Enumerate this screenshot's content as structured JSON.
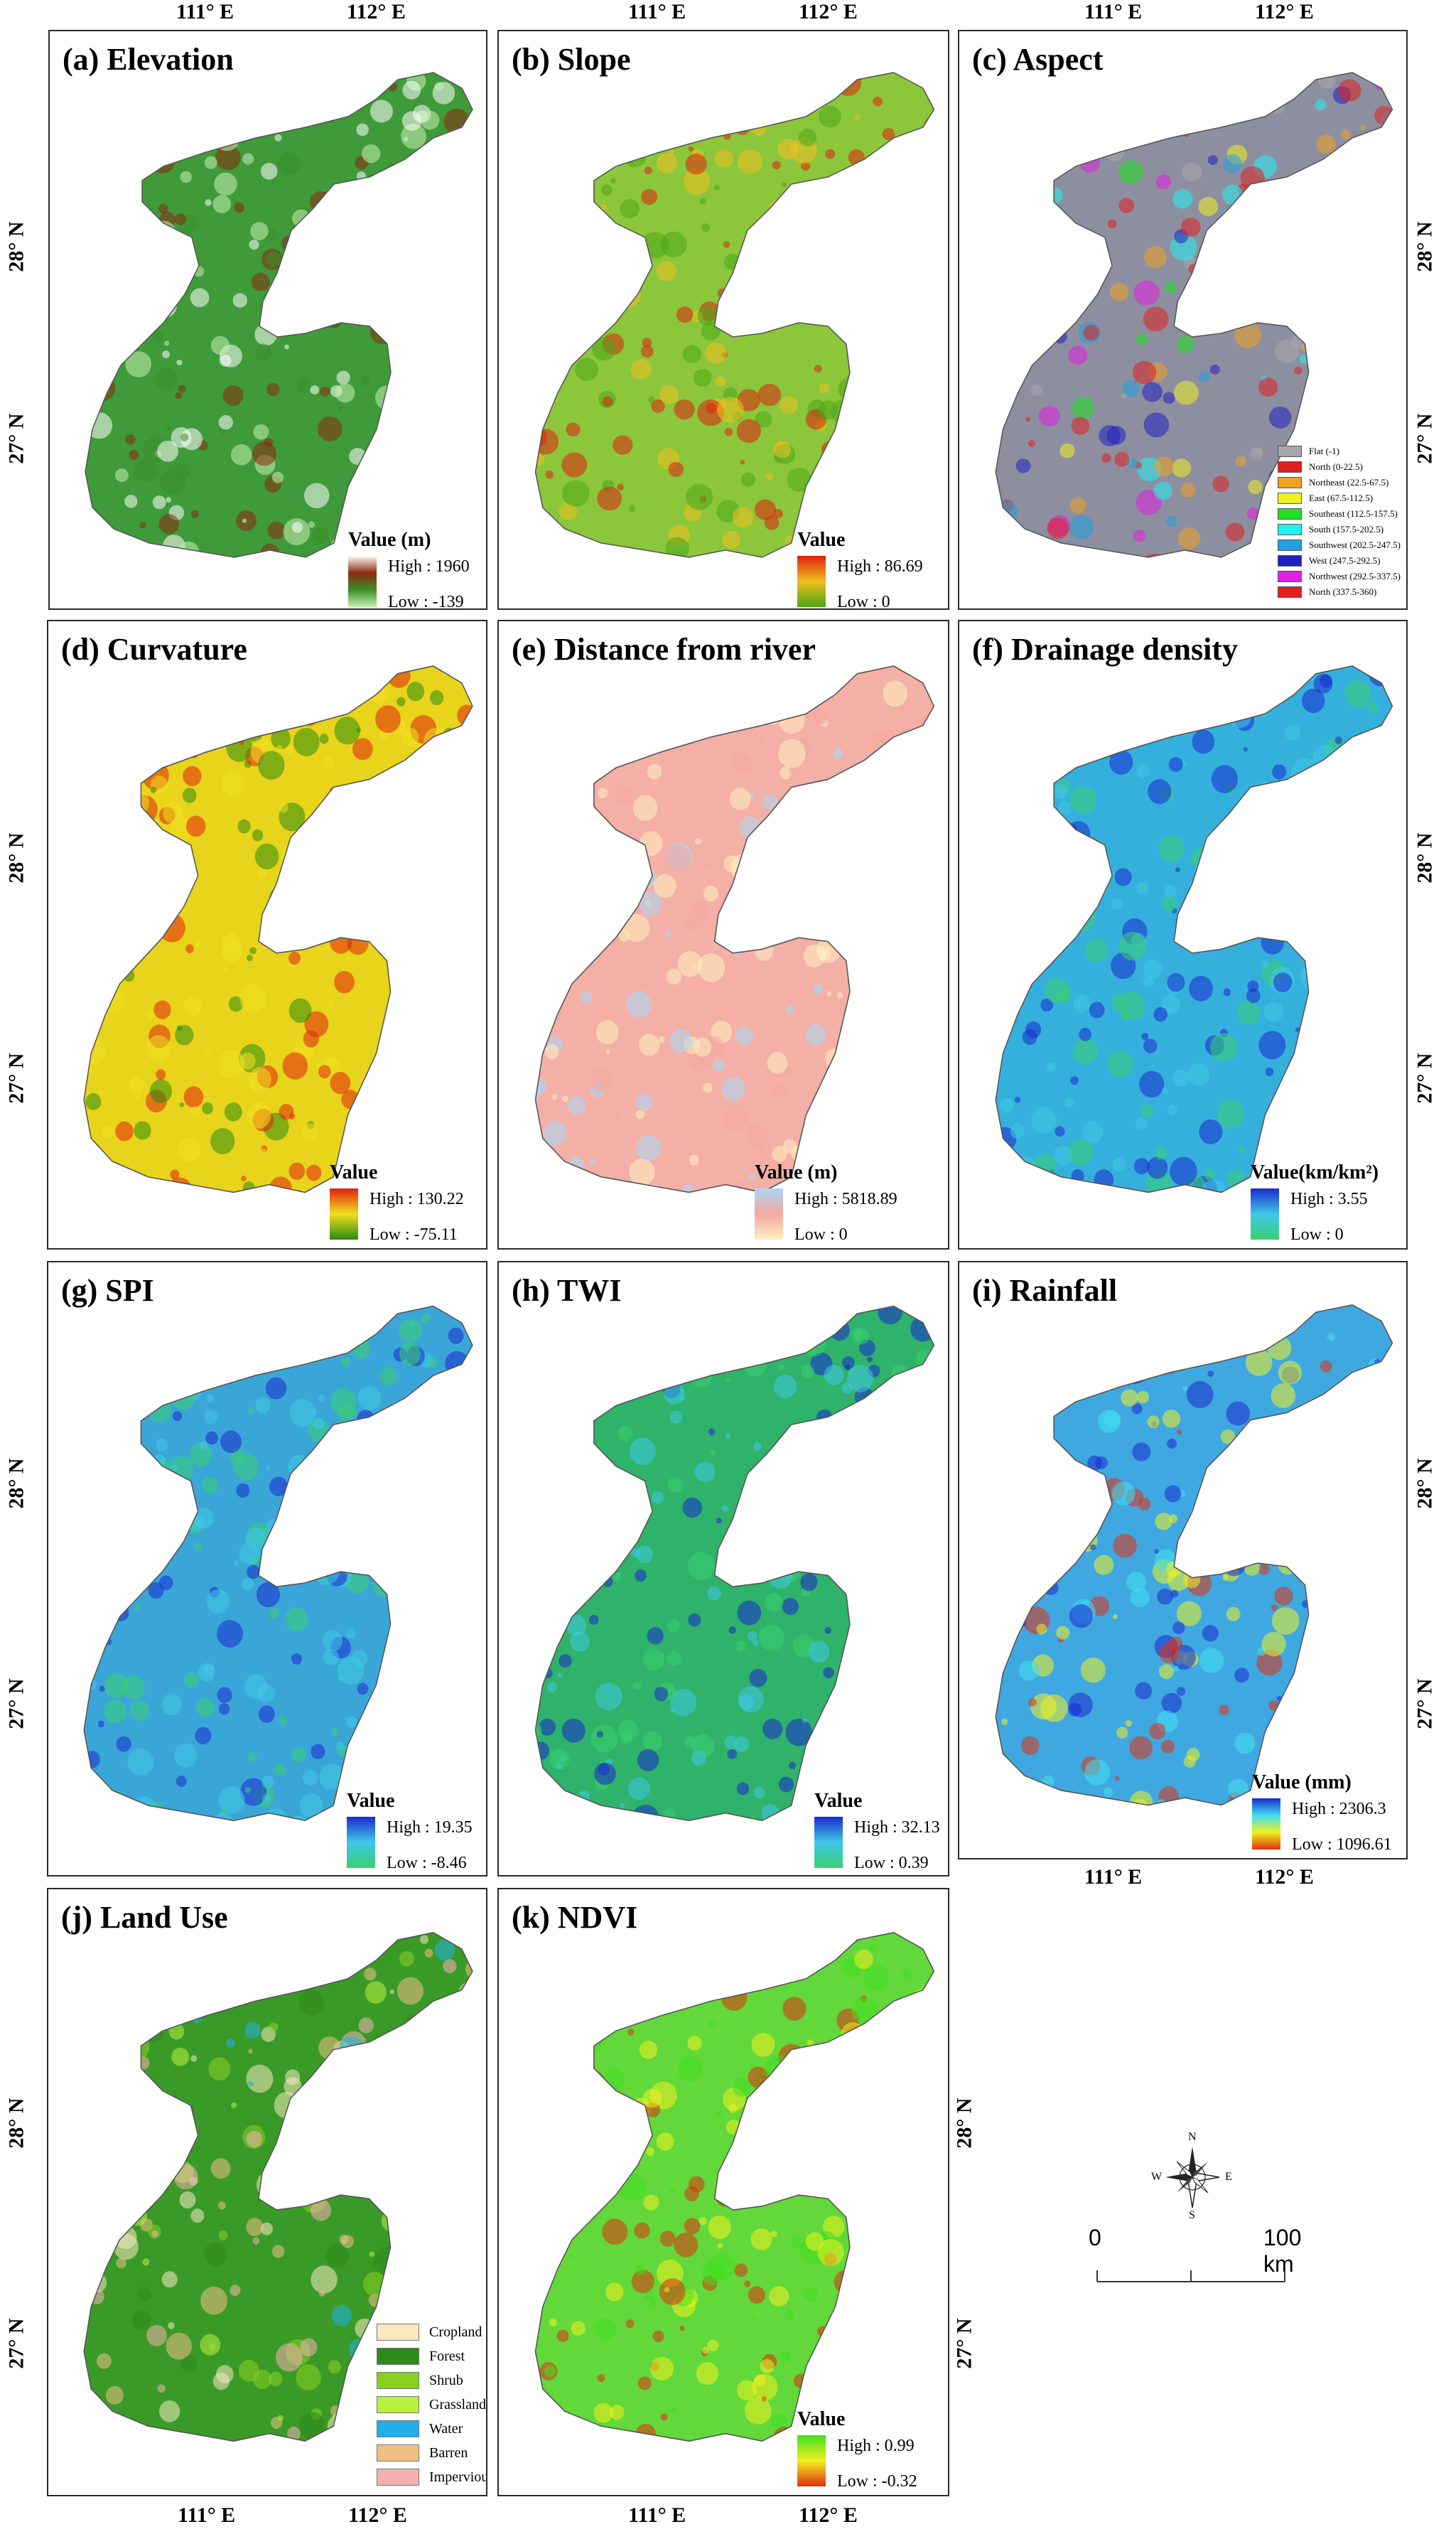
{
  "coords": {
    "lon1": "111° E",
    "lon2": "112° E",
    "lat1": "28° N",
    "lat2": "27° N"
  },
  "panels": {
    "a": {
      "title": "(a) Elevation",
      "legend_title": "Value (m)",
      "high": "High : 1960",
      "low": "Low : -139",
      "ramp": [
        "#ffffff",
        "#8b2a10",
        "#3b8f2a",
        "#c8f0b0"
      ]
    },
    "b": {
      "title": "(b) Slope",
      "legend_title": "Value",
      "high": "High : 86.69",
      "low": "Low : 0",
      "ramp": [
        "#e02010",
        "#f0c020",
        "#4aa818"
      ]
    },
    "c": {
      "title": "(c) Aspect",
      "categories": [
        {
          "label": "Flat (-1)",
          "color": "#a8a8a8"
        },
        {
          "label": "North (0-22.5)",
          "color": "#e02020"
        },
        {
          "label": "Northeast (22.5-67.5)",
          "color": "#f0a020"
        },
        {
          "label": "East (67.5-112.5)",
          "color": "#f0f020"
        },
        {
          "label": "Southeast (112.5-157.5)",
          "color": "#20e020"
        },
        {
          "label": "South (157.5-202.5)",
          "color": "#20f0f0"
        },
        {
          "label": "Southwest (202.5-247.5)",
          "color": "#20a0e0"
        },
        {
          "label": "West (247.5-292.5)",
          "color": "#2020c0"
        },
        {
          "label": "Northwest (292.5-337.5)",
          "color": "#e020e0"
        },
        {
          "label": "North (337.5-360)",
          "color": "#e02020"
        }
      ]
    },
    "d": {
      "title": "(d) Curvature",
      "legend_title": "Value",
      "high": "High : 130.22",
      "low": "Low : -75.11",
      "ramp": [
        "#e02010",
        "#f0e020",
        "#2a8a10"
      ]
    },
    "e": {
      "title": "(e) Distance from river",
      "legend_title": "Value (m)",
      "high": "High : 5818.89",
      "low": "Low : 0",
      "ramp": [
        "#a8d8f8",
        "#f4a8a0",
        "#fff0c0"
      ]
    },
    "f": {
      "title": "(f) Drainage density",
      "legend_title": "Value(km/km²)",
      "high": "High : 3.55",
      "low": "Low : 0",
      "ramp": [
        "#1a2ad0",
        "#40c8e8",
        "#38d070"
      ]
    },
    "g": {
      "title": "(g) SPI",
      "legend_title": "Value",
      "high": "High : 19.35",
      "low": "Low : -8.46",
      "ramp": [
        "#1a2ad0",
        "#40c8e8",
        "#38d070"
      ]
    },
    "h": {
      "title": "(h) TWI",
      "legend_title": "Value",
      "high": "High : 32.13",
      "low": "Low : 0.39",
      "ramp": [
        "#1a2ad0",
        "#40c8e8",
        "#38d070"
      ]
    },
    "i": {
      "title": "(i) Rainfall",
      "legend_title": "Value (mm)",
      "high": "High : 2306.3",
      "low": "Low : 1096.61",
      "ramp": [
        "#1a2ad0",
        "#40e0f0",
        "#f0f020",
        "#e03010"
      ]
    },
    "j": {
      "title": "(j) Land Use",
      "categories": [
        {
          "label": "Cropland",
          "color": "#f8e8c0"
        },
        {
          "label": "Forest",
          "color": "#2e8b18"
        },
        {
          "label": "Shrub",
          "color": "#8ad020"
        },
        {
          "label": "Grassland",
          "color": "#b8f040"
        },
        {
          "label": "Water",
          "color": "#20b0e8"
        },
        {
          "label": "Barren",
          "color": "#f0c080"
        },
        {
          "label": "Impervious",
          "color": "#f4b0b0"
        }
      ]
    },
    "k": {
      "title": "(k) NDVI",
      "legend_title": "Value",
      "high": "High : 0.99",
      "low": "Low : -0.32",
      "ramp": [
        "#40e020",
        "#f0f020",
        "#e03010"
      ]
    }
  },
  "colors": {
    "a_fill": "#3f9a3a",
    "b_fill": "#8cc63a",
    "c_fill": "#8d8fa0",
    "d_fill": "#e8d41a",
    "e_fill": "#f4b0a6",
    "f_fill": "#35b0dc",
    "g_fill": "#3aa6d8",
    "h_fill": "#2fb26a",
    "i_fill": "#40a8e0",
    "j_fill": "#3a9a28",
    "k_fill": "#62d83a"
  },
  "scale": {
    "zero": "0",
    "hundred": "100 km",
    "north": "N",
    "south": "S",
    "east": "E",
    "west": "W"
  }
}
